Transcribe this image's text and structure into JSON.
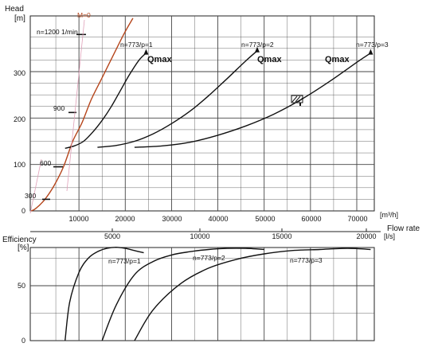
{
  "chart_data": [
    {
      "type": "line",
      "panel": "head",
      "ylabel": "Head",
      "yunit": "[m]",
      "xlabel": "Flow rate",
      "x_unit_primary": "[m³/h]",
      "x_unit_secondary": "[l/s]",
      "ylim": [
        0,
        390
      ],
      "xlim": [
        -1000,
        77000
      ],
      "yticks": [
        "0",
        "100",
        "200",
        "300"
      ],
      "xticks_m3h": [
        "10000",
        "20000",
        "30000",
        "40000",
        "50000",
        "60000",
        "70000"
      ],
      "xticks_ls": [
        "5000",
        "10000",
        "15000",
        "20000"
      ],
      "grid": true,
      "series": [
        {
          "name": "n=773/p=1",
          "x": [
            0,
            1000,
            3000,
            5000,
            7000,
            9000,
            11000,
            13000,
            15000,
            17000,
            20000,
            22000,
            24000
          ],
          "y": [
            0,
            5,
            25,
            55,
            95,
            150,
            190,
            240,
            280,
            320,
            380,
            415,
            440
          ]
        },
        {
          "name": "n=773/p=1",
          "x": [
            7000,
            9000,
            11000,
            13000,
            15000,
            17000,
            19000,
            21000,
            23000,
            24500
          ],
          "y": [
            135,
            140,
            150,
            170,
            195,
            225,
            260,
            295,
            325,
            340
          ]
        },
        {
          "name": "n=773/p=2",
          "x": [
            14000,
            18000,
            22000,
            26000,
            30000,
            34000,
            38000,
            42000,
            46000,
            48500
          ],
          "y": [
            137,
            141,
            150,
            166,
            188,
            215,
            248,
            285,
            323,
            345
          ]
        },
        {
          "name": "n=773/p=3",
          "x": [
            22000,
            28000,
            34000,
            40000,
            46000,
            52000,
            58000,
            64000,
            70000,
            73000
          ],
          "y": [
            137,
            140,
            148,
            163,
            183,
            208,
            240,
            278,
            320,
            340
          ]
        }
      ],
      "annotations": [
        {
          "text": "n=1200 1/min",
          "x": 10000,
          "y": 380
        },
        {
          "text": "M=0",
          "x": 9000,
          "y": 385
        },
        {
          "text": "900",
          "x": 8000,
          "y": 212
        },
        {
          "text": "600",
          "x": 4500,
          "y": 95
        },
        {
          "text": "300",
          "x": 1000,
          "y": 25
        },
        {
          "text": "n=773/p=1",
          "x": 22000,
          "y": 345
        },
        {
          "text": "n=773/p=2",
          "x": 47000,
          "y": 345
        },
        {
          "text": "n=773/p=3",
          "x": 72000,
          "y": 345
        },
        {
          "text": "Qmax",
          "x": 24000,
          "y": 330
        },
        {
          "text": "Qmax",
          "x": 49000,
          "y": 330
        },
        {
          "text": "Qmax",
          "x": 67000,
          "y": 330
        }
      ]
    },
    {
      "type": "line",
      "panel": "efficiency",
      "ylabel": "Efficiency",
      "yunit": "[%]",
      "ylim": [
        0,
        90
      ],
      "yticks": [
        "0",
        "50"
      ],
      "grid": true,
      "series": [
        {
          "name": "n=773/p=1",
          "x": [
            7000,
            8000,
            10000,
            12000,
            14000,
            16000,
            18000,
            20000,
            22000,
            24000
          ],
          "y": [
            0,
            35,
            62,
            75,
            81,
            84,
            85,
            84,
            82,
            80
          ]
        },
        {
          "name": "n=773/p=2",
          "x": [
            15000,
            18000,
            22000,
            26000,
            30000,
            34000,
            38000,
            42000,
            46000,
            50000
          ],
          "y": [
            0,
            32,
            60,
            72,
            78,
            81,
            83,
            84,
            84,
            83
          ]
        },
        {
          "name": "n=773/p=3",
          "x": [
            22000,
            26000,
            32000,
            38000,
            44000,
            50000,
            56000,
            62000,
            68000,
            73000
          ],
          "y": [
            0,
            28,
            52,
            66,
            74,
            79,
            82,
            83,
            84,
            83
          ]
        }
      ]
    }
  ]
}
